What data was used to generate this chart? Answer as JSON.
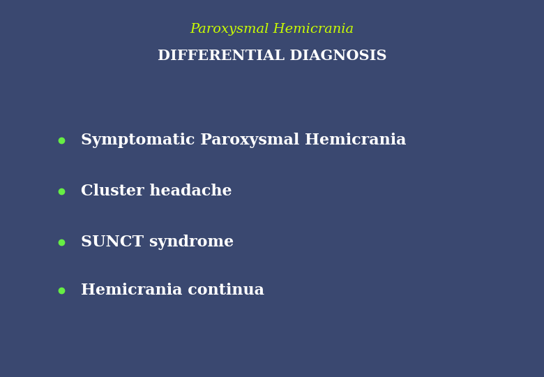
{
  "title_line1": "Paroxysmal Hemicrania",
  "title_line2": "DIFFERENTIAL DIAGNOSIS",
  "title_color_line1": "#ccff00",
  "title_color_line2": "#ffffff",
  "bullet_items": [
    "Symptomatic Paroxysmal Hemicrania",
    "Cluster headache",
    "SUNCT syndrome",
    "Hemicrania continua"
  ],
  "bullet_color": "#66ee44",
  "text_color": "#ffffff",
  "background_color": "#3a4870",
  "header_box_facecolor": "#0d1a4a",
  "header_box_edgecolor": "#9999cc",
  "content_box_facecolor": "#0d1a4a",
  "content_box_edgecolor": "#9999cc",
  "title_fontsize1": 14,
  "title_fontsize2": 15,
  "bullet_fontsize": 16
}
